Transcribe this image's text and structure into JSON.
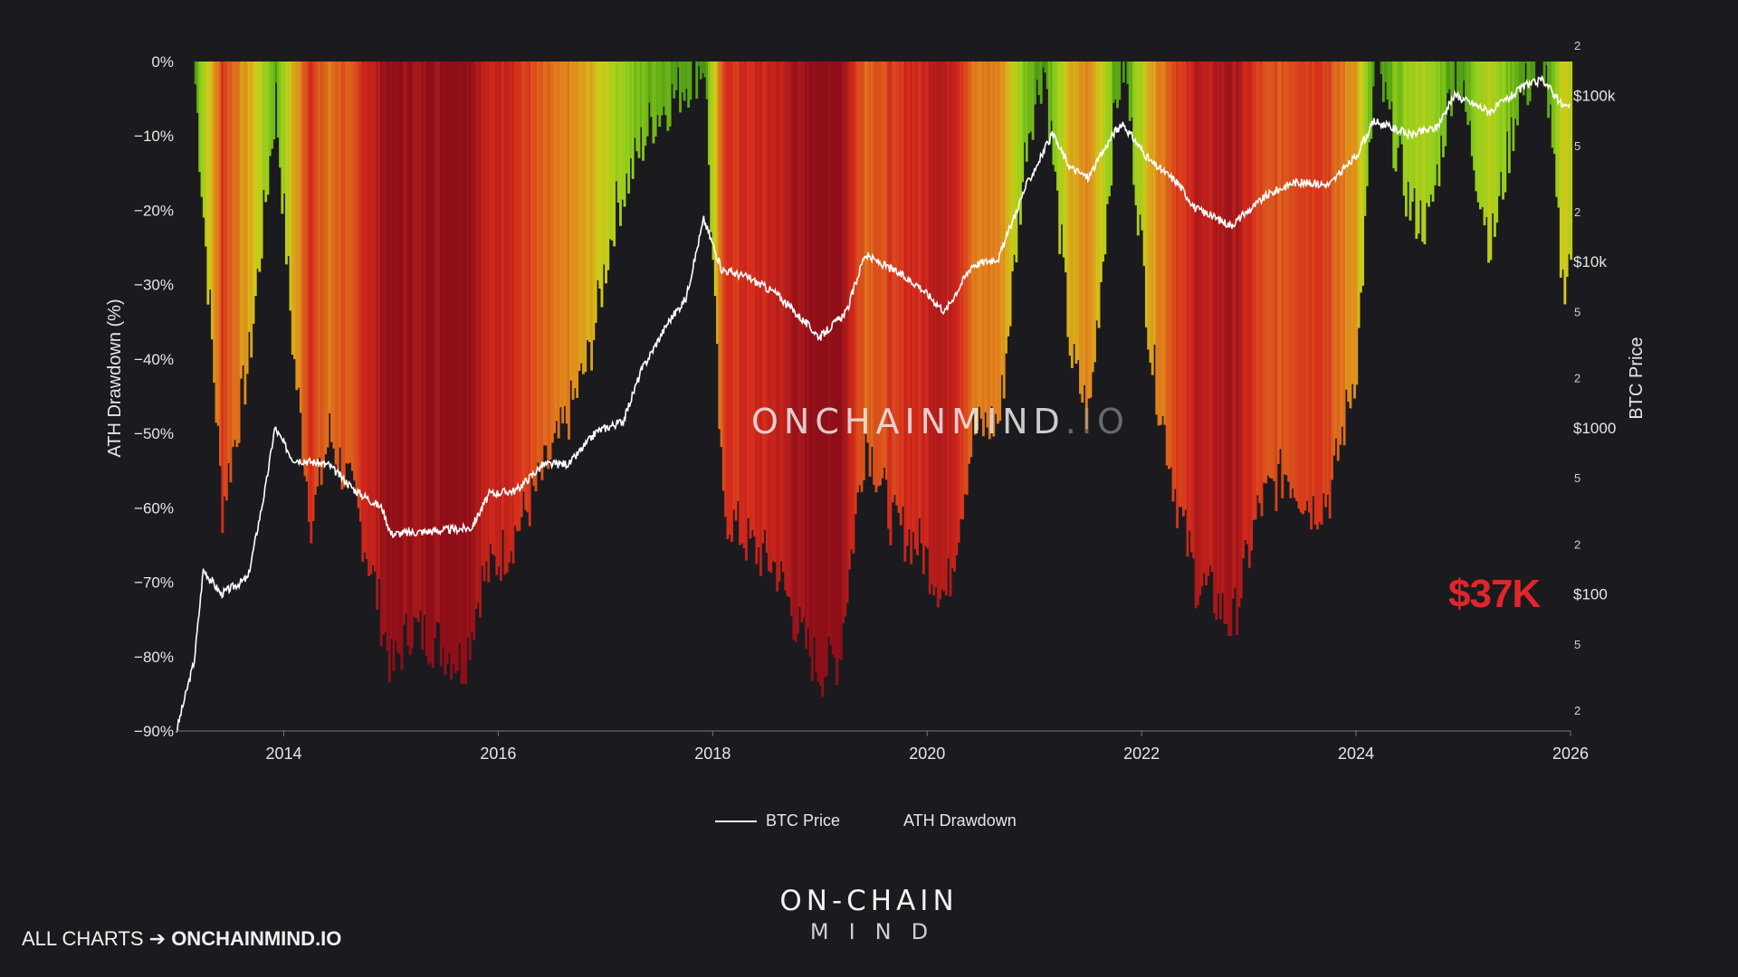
{
  "watermark": {
    "name": "ONCHAINMIND",
    "suffix": ".IO"
  },
  "callout": {
    "text": "$37K",
    "color": "#e0262a"
  },
  "legend": {
    "price_label": "BTC Price",
    "drawdown_label": "ATH Drawdown"
  },
  "brand": {
    "line1": "ON-CHAIN",
    "line2": "MIND"
  },
  "footer": {
    "prefix": "ALL CHARTS",
    "arrow": "➔",
    "site": "ONCHAINMIND.IO"
  },
  "colors": {
    "background": "#1b1b1f",
    "price_line": "#ffffff",
    "drawdown_scale": [
      "#3f8f12",
      "#8fcf1c",
      "#d3cb1a",
      "#e0821d",
      "#d52a1c",
      "#8e0f19"
    ],
    "callout": "#e0262a"
  },
  "chart_data": {
    "type": "area",
    "title": "",
    "xlabel": "",
    "ylabel": "ATH Drawdown (%)",
    "y2label": "BTC Price",
    "y2scale": "log",
    "xlim": [
      "2013-01",
      "2026-01"
    ],
    "ylim": [
      -90,
      0
    ],
    "y2lim": [
      15,
      160000
    ],
    "grid": false,
    "legend_position": "bottom-center",
    "x_ticks": [
      "2014",
      "2016",
      "2018",
      "2020",
      "2022",
      "2024",
      "2026"
    ],
    "y_ticks": [
      "0%",
      "−10%",
      "−20%",
      "−30%",
      "−40%",
      "−50%",
      "−60%",
      "−70%",
      "−80%",
      "−90%"
    ],
    "y2_major_ticks": [
      "$100",
      "$1000",
      "$10k",
      "$100k"
    ],
    "y2_minor_ticks": [
      "2",
      "5",
      "2",
      "5",
      "2",
      "5",
      "2",
      "5",
      "2"
    ],
    "series": [
      {
        "name": "ATH Drawdown",
        "style": "colored-area",
        "points": [
          [
            "2013-03",
            -3
          ],
          [
            "2013-06",
            -60
          ],
          [
            "2013-09",
            -40
          ],
          [
            "2013-12",
            -5
          ],
          [
            "2014-02",
            -40
          ],
          [
            "2014-04",
            -62
          ],
          [
            "2014-06",
            -50
          ],
          [
            "2014-09",
            -60
          ],
          [
            "2014-11",
            -70
          ],
          [
            "2015-01",
            -82
          ],
          [
            "2015-03",
            -76
          ],
          [
            "2015-06",
            -78
          ],
          [
            "2015-09",
            -81
          ],
          [
            "2015-11",
            -70
          ],
          [
            "2016-02",
            -65
          ],
          [
            "2016-05",
            -58
          ],
          [
            "2016-08",
            -50
          ],
          [
            "2016-11",
            -40
          ],
          [
            "2017-02",
            -20
          ],
          [
            "2017-06",
            -8
          ],
          [
            "2017-12",
            0
          ],
          [
            "2018-02",
            -60
          ],
          [
            "2018-05",
            -65
          ],
          [
            "2018-08",
            -68
          ],
          [
            "2018-11",
            -78
          ],
          [
            "2019-01",
            -82
          ],
          [
            "2019-03",
            -80
          ],
          [
            "2019-06",
            -50
          ],
          [
            "2019-09",
            -62
          ],
          [
            "2019-12",
            -65
          ],
          [
            "2020-03",
            -72
          ],
          [
            "2020-06",
            -50
          ],
          [
            "2020-09",
            -48
          ],
          [
            "2020-12",
            -10
          ],
          [
            "2021-02",
            0
          ],
          [
            "2021-05",
            -40
          ],
          [
            "2021-07",
            -48
          ],
          [
            "2021-10",
            -5
          ],
          [
            "2021-11",
            0
          ],
          [
            "2022-02",
            -40
          ],
          [
            "2022-05",
            -60
          ],
          [
            "2022-07",
            -70
          ],
          [
            "2022-09",
            -72
          ],
          [
            "2022-11",
            -76
          ],
          [
            "2023-02",
            -60
          ],
          [
            "2023-05",
            -55
          ],
          [
            "2023-08",
            -60
          ],
          [
            "2023-10",
            -58
          ],
          [
            "2024-01",
            -40
          ],
          [
            "2024-03",
            0
          ],
          [
            "2024-07",
            -20
          ],
          [
            "2024-09",
            -22
          ],
          [
            "2024-12",
            0
          ],
          [
            "2025-04",
            -25
          ],
          [
            "2025-07",
            -5
          ],
          [
            "2025-10",
            0
          ],
          [
            "2025-12",
            -30
          ],
          [
            "2026-01",
            -25
          ]
        ]
      },
      {
        "name": "BTC Price",
        "style": "line",
        "points": [
          [
            "2013-01",
            15
          ],
          [
            "2013-03",
            40
          ],
          [
            "2013-04",
            140
          ],
          [
            "2013-06",
            100
          ],
          [
            "2013-09",
            125
          ],
          [
            "2013-11",
            450
          ],
          [
            "2013-12",
            1000
          ],
          [
            "2014-02",
            650
          ],
          [
            "2014-06",
            600
          ],
          [
            "2014-09",
            420
          ],
          [
            "2014-12",
            330
          ],
          [
            "2015-01",
            230
          ],
          [
            "2015-06",
            240
          ],
          [
            "2015-10",
            250
          ],
          [
            "2015-12",
            400
          ],
          [
            "2016-03",
            420
          ],
          [
            "2016-06",
            600
          ],
          [
            "2016-09",
            610
          ],
          [
            "2016-12",
            950
          ],
          [
            "2017-03",
            1100
          ],
          [
            "2017-05",
            2200
          ],
          [
            "2017-08",
            4300
          ],
          [
            "2017-10",
            6000
          ],
          [
            "2017-12",
            18000
          ],
          [
            "2018-02",
            9000
          ],
          [
            "2018-05",
            8000
          ],
          [
            "2018-08",
            6500
          ],
          [
            "2018-11",
            4500
          ],
          [
            "2019-01",
            3500
          ],
          [
            "2019-04",
            5000
          ],
          [
            "2019-06",
            11000
          ],
          [
            "2019-09",
            9000
          ],
          [
            "2019-12",
            7200
          ],
          [
            "2020-03",
            5000
          ],
          [
            "2020-06",
            9500
          ],
          [
            "2020-09",
            10500
          ],
          [
            "2020-12",
            28000
          ],
          [
            "2021-03",
            58000
          ],
          [
            "2021-05",
            37000
          ],
          [
            "2021-07",
            32000
          ],
          [
            "2021-10",
            61000
          ],
          [
            "2021-11",
            66000
          ],
          [
            "2022-02",
            40000
          ],
          [
            "2022-05",
            30000
          ],
          [
            "2022-07",
            21000
          ],
          [
            "2022-11",
            16500
          ],
          [
            "2023-03",
            25000
          ],
          [
            "2023-06",
            30000
          ],
          [
            "2023-10",
            29000
          ],
          [
            "2024-01",
            43000
          ],
          [
            "2024-03",
            70000
          ],
          [
            "2024-07",
            58000
          ],
          [
            "2024-10",
            64000
          ],
          [
            "2024-12",
            100000
          ],
          [
            "2025-04",
            80000
          ],
          [
            "2025-08",
            115000
          ],
          [
            "2025-10",
            124000
          ],
          [
            "2025-12",
            88000
          ],
          [
            "2026-01",
            84000
          ]
        ]
      }
    ]
  }
}
